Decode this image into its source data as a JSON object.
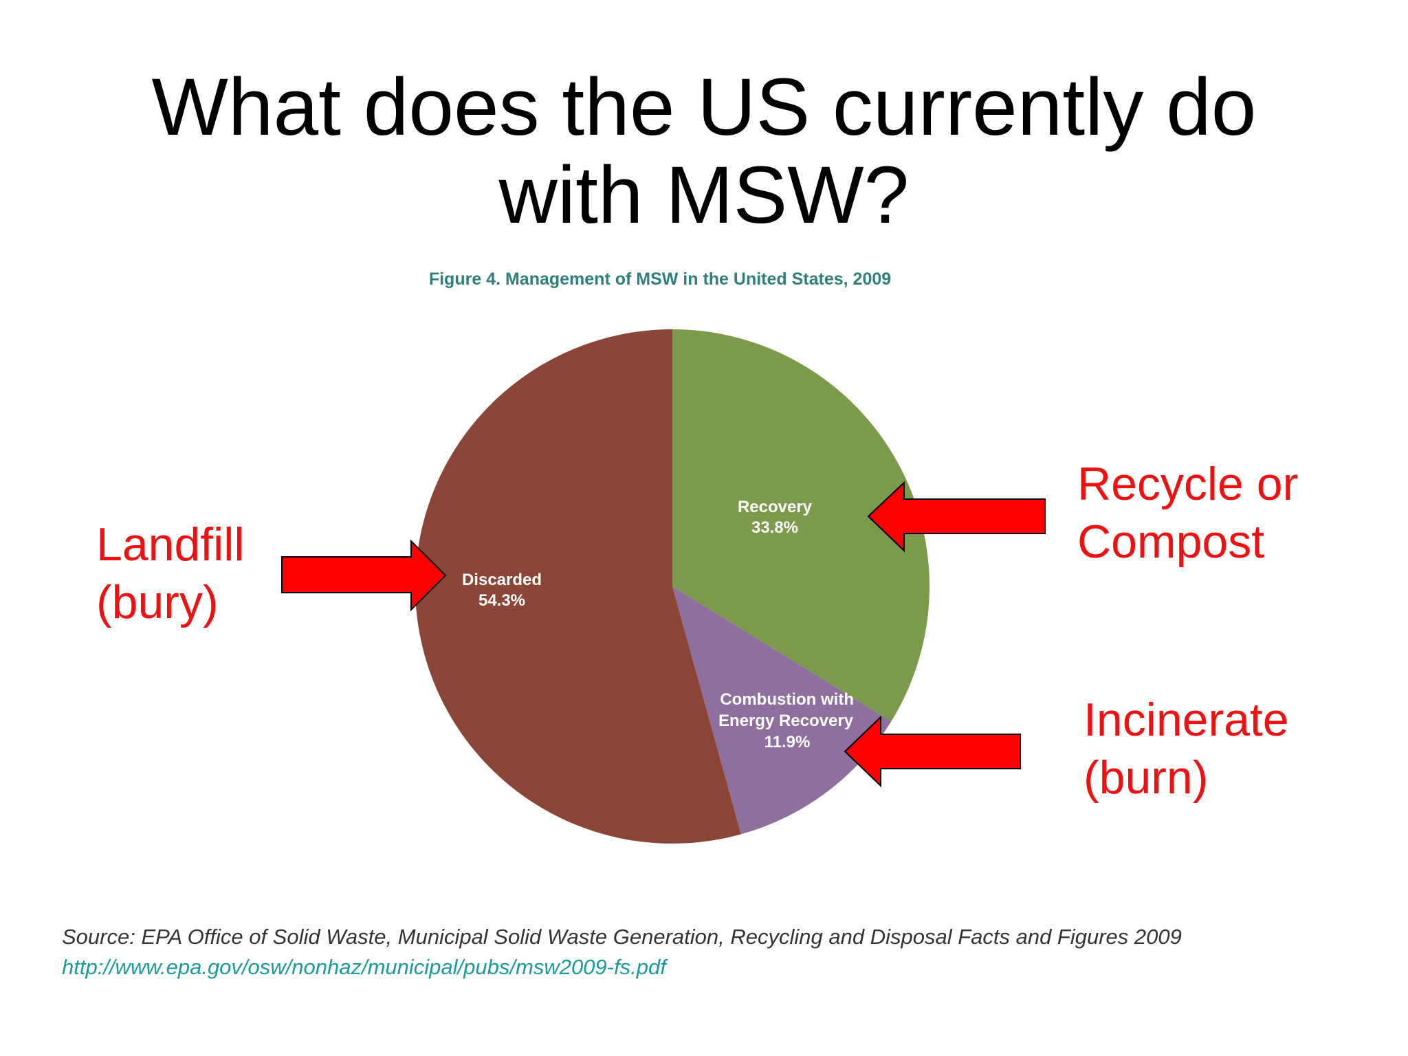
{
  "slide": {
    "title_lines": [
      "What does the US currently do",
      "with MSW?"
    ]
  },
  "chart_data": {
    "type": "pie",
    "title": "Figure 4. Management of MSW in the United States, 2009",
    "slices": [
      {
        "name": "Recovery",
        "value": 33.8,
        "label": "33.8%",
        "color": "#7c9a4c"
      },
      {
        "name": "Combustion with Energy Recovery",
        "value": 11.9,
        "label": "11.9%",
        "color": "#8f6f9e"
      },
      {
        "name": "Discarded",
        "value": 54.3,
        "label": "54.3%",
        "color": "#8b4536"
      }
    ],
    "title_color": "#2f7f7a"
  },
  "callouts": {
    "landfill": [
      "Landfill",
      "(bury)"
    ],
    "recycle": [
      "Recycle or",
      "Compost"
    ],
    "incinerate": [
      "Incinerate",
      "(burn)"
    ],
    "color": "#ee1111",
    "arrow_color": "#ff0000"
  },
  "source": {
    "text": "Source: EPA Office of Solid Waste, Municipal Solid Waste Generation, Recycling and Disposal Facts and Figures 2009",
    "url": "http://www.epa.gov/osw/nonhaz/municipal/pubs/msw2009-fs.pdf"
  }
}
